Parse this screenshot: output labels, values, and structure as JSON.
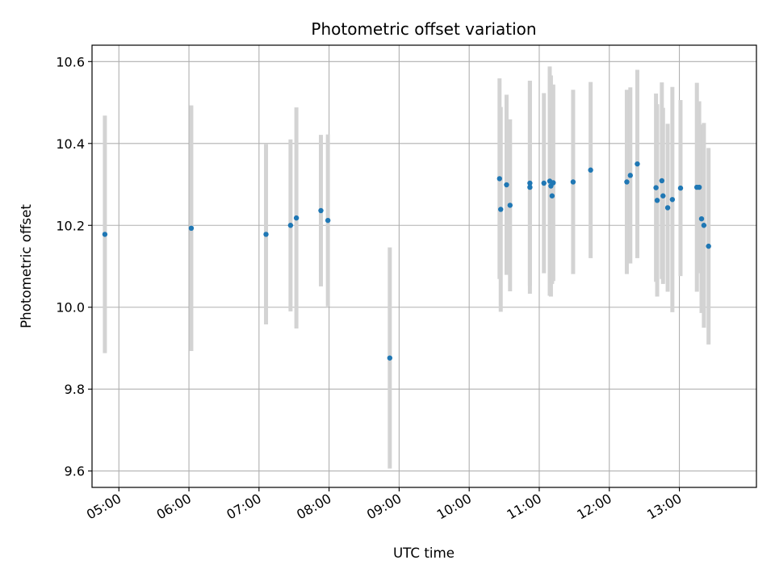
{
  "chart_data": {
    "type": "scatter",
    "title": "Photometric offset variation",
    "xlabel": "UTC time",
    "ylabel": "Photometric offset",
    "x_unit": "UTC time (HH:MM)",
    "xlim": [
      "04:37",
      "14:06"
    ],
    "ylim": [
      9.56,
      10.64
    ],
    "x_ticks": [
      "05:00",
      "06:00",
      "07:00",
      "08:00",
      "09:00",
      "10:00",
      "11:00",
      "12:00",
      "13:00"
    ],
    "y_ticks": [
      "9.6",
      "9.8",
      "10.0",
      "10.2",
      "10.4",
      "10.6"
    ],
    "grid": true,
    "colors": {
      "point": "#1f77b4",
      "errorbar": "#d3d3d3",
      "grid": "#b0b0b0"
    },
    "points": [
      {
        "t": "04:48",
        "y": 10.178,
        "yerr": 0.29
      },
      {
        "t": "06:02",
        "y": 10.193,
        "yerr": 0.3
      },
      {
        "t": "07:06",
        "y": 10.178,
        "yerr": 0.22
      },
      {
        "t": "07:27",
        "y": 10.2,
        "yerr": 0.21
      },
      {
        "t": "07:32",
        "y": 10.218,
        "yerr": 0.27
      },
      {
        "t": "07:53",
        "y": 10.236,
        "yerr": 0.185
      },
      {
        "t": "07:59",
        "y": 10.212,
        "yerr": 0.21
      },
      {
        "t": "08:52",
        "y": 9.876,
        "yerr": 0.27
      },
      {
        "t": "10:26",
        "y": 10.314,
        "yerr": 0.245
      },
      {
        "t": "10:27",
        "y": 10.239,
        "yerr": 0.25
      },
      {
        "t": "10:32",
        "y": 10.299,
        "yerr": 0.22
      },
      {
        "t": "10:35",
        "y": 10.249,
        "yerr": 0.21
      },
      {
        "t": "10:52",
        "y": 10.303,
        "yerr": 0.25
      },
      {
        "t": "10:52",
        "y": 10.293,
        "yerr": 0.26
      },
      {
        "t": "11:04",
        "y": 10.303,
        "yerr": 0.22
      },
      {
        "t": "11:09",
        "y": 10.308,
        "yerr": 0.28
      },
      {
        "t": "11:10",
        "y": 10.296,
        "yerr": 0.27
      },
      {
        "t": "11:11",
        "y": 10.272,
        "yerr": 0.215
      },
      {
        "t": "11:12",
        "y": 10.304,
        "yerr": 0.24
      },
      {
        "t": "11:29",
        "y": 10.306,
        "yerr": 0.225
      },
      {
        "t": "11:44",
        "y": 10.335,
        "yerr": 0.215
      },
      {
        "t": "12:15",
        "y": 10.306,
        "yerr": 0.225
      },
      {
        "t": "12:18",
        "y": 10.322,
        "yerr": 0.215
      },
      {
        "t": "12:24",
        "y": 10.35,
        "yerr": 0.23
      },
      {
        "t": "12:40",
        "y": 10.292,
        "yerr": 0.23
      },
      {
        "t": "12:41",
        "y": 10.261,
        "yerr": 0.235
      },
      {
        "t": "12:45",
        "y": 10.309,
        "yerr": 0.24
      },
      {
        "t": "12:46",
        "y": 10.272,
        "yerr": 0.215
      },
      {
        "t": "12:50",
        "y": 10.243,
        "yerr": 0.205
      },
      {
        "t": "12:54",
        "y": 10.263,
        "yerr": 0.275
      },
      {
        "t": "13:01",
        "y": 10.291,
        "yerr": 0.215
      },
      {
        "t": "13:15",
        "y": 10.293,
        "yerr": 0.255
      },
      {
        "t": "13:17",
        "y": 10.293,
        "yerr": 0.21
      },
      {
        "t": "13:19",
        "y": 10.216,
        "yerr": 0.23
      },
      {
        "t": "13:21",
        "y": 10.2,
        "yerr": 0.25
      },
      {
        "t": "13:25",
        "y": 10.149,
        "yerr": 0.24
      }
    ]
  }
}
